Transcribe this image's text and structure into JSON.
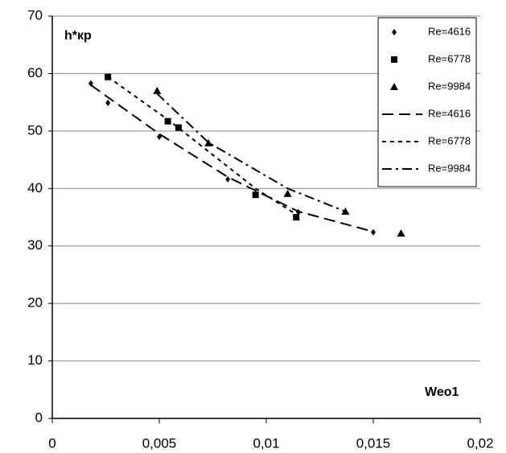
{
  "chart_data": {
    "type": "scatter",
    "x_label": "Weо1",
    "y_label": "h*кр",
    "xlim": [
      0,
      0.02
    ],
    "ylim": [
      0,
      70
    ],
    "xticks": [
      0,
      {
        "value": 0.005,
        "label": "0,005"
      },
      {
        "value": 0.01,
        "label": "0,01"
      },
      {
        "value": 0.015,
        "label": "0,015"
      },
      {
        "value": 0.02,
        "label": "0,02"
      }
    ],
    "yticks": [
      0,
      10,
      20,
      30,
      40,
      50,
      60,
      70
    ],
    "grid": true,
    "legend": "upper right",
    "series": [
      {
        "name": "Re=4616",
        "color": "#000000",
        "marker": "diamond",
        "x": [
          0.0018,
          0.0026,
          0.005,
          0.0082,
          0.0115,
          0.015
        ],
        "values": [
          58.3,
          54.9,
          49.0,
          41.6,
          35.9,
          32.4
        ]
      },
      {
        "name": "Re=6778",
        "color": "#000000",
        "marker": "square",
        "x": [
          0.0026,
          0.0054,
          0.0059,
          0.0095,
          0.0114
        ],
        "values": [
          59.4,
          51.7,
          50.6,
          38.9,
          35.0
        ]
      },
      {
        "name": "Re=9984",
        "color": "#000000",
        "marker": "triangle",
        "x": [
          0.0049,
          0.0073,
          0.011,
          0.0137,
          0.0163
        ],
        "values": [
          57.0,
          47.9,
          39.1,
          36.0,
          32.2
        ]
      },
      {
        "name": "Re=4616",
        "color": "#000000",
        "dash": "long",
        "x": [
          0.0018,
          0.005,
          0.0082,
          0.0115,
          0.015
        ],
        "values": [
          58.0,
          49.5,
          42.0,
          36.0,
          32.5
        ]
      },
      {
        "name": "Re=6778",
        "color": "#000000",
        "dash": "short",
        "x": [
          0.0026,
          0.0054,
          0.0095,
          0.0114
        ],
        "values": [
          59.4,
          52.0,
          40.0,
          35.5
        ]
      },
      {
        "name": "Re=9984",
        "color": "#000000",
        "dash": "dashdot",
        "x": [
          0.0049,
          0.0073,
          0.011,
          0.0137
        ],
        "values": [
          56.5,
          48.0,
          40.0,
          36.0
        ]
      }
    ]
  }
}
